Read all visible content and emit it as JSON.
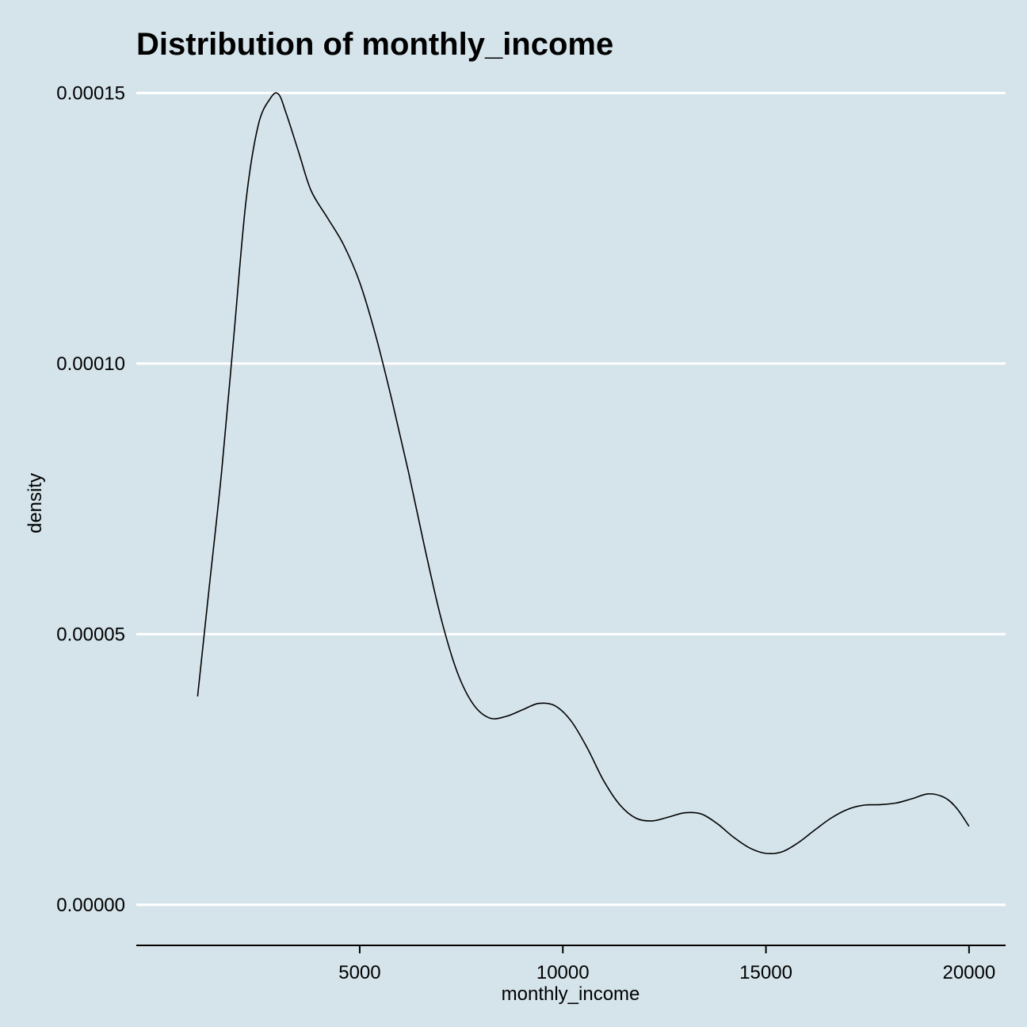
{
  "chart_data": {
    "type": "line",
    "title": "Distribution of monthly_income",
    "xlabel": "monthly_income",
    "ylabel": "density",
    "xlim": [
      -500,
      20900
    ],
    "ylim": [
      -7.5e-06,
      0.000154
    ],
    "x_ticks": [
      5000,
      10000,
      15000,
      20000
    ],
    "x_tick_labels": [
      "5000",
      "10000",
      "15000",
      "20000"
    ],
    "y_ticks": [
      0,
      5e-05,
      0.0001,
      0.00015
    ],
    "y_tick_labels": [
      "0.00000",
      "0.00005",
      "0.00010",
      "0.00015"
    ],
    "grid": "horizontal",
    "series": [
      {
        "name": "density",
        "x": [
          1009,
          1300,
          1600,
          1900,
          2200,
          2500,
          2800,
          3000,
          3200,
          3500,
          3800,
          4200,
          4600,
          5000,
          5400,
          5800,
          6200,
          6600,
          7000,
          7400,
          7800,
          8200,
          8600,
          9000,
          9400,
          9800,
          10200,
          10600,
          11000,
          11400,
          11800,
          12200,
          12600,
          13000,
          13400,
          13800,
          14200,
          14600,
          15000,
          15400,
          15800,
          16200,
          16600,
          17000,
          17400,
          17800,
          18200,
          18600,
          19000,
          19400,
          19700,
          19999
        ],
        "values": [
          3.85e-05,
          5.9e-05,
          8e-05,
          0.000105,
          0.00013,
          0.000144,
          0.000149,
          0.0001498,
          0.000146,
          0.000139,
          0.000132,
          0.000127,
          0.000122,
          0.000115,
          0.000105,
          9.3e-05,
          8e-05,
          6.6e-05,
          5.3e-05,
          4.3e-05,
          3.7e-05,
          3.45e-05,
          3.48e-05,
          3.6e-05,
          3.72e-05,
          3.68e-05,
          3.4e-05,
          2.9e-05,
          2.3e-05,
          1.85e-05,
          1.6e-05,
          1.55e-05,
          1.62e-05,
          1.7e-05,
          1.68e-05,
          1.5e-05,
          1.25e-05,
          1.05e-05,
          9.5e-06,
          9.8e-06,
          1.15e-05,
          1.38e-05,
          1.6e-05,
          1.76e-05,
          1.84e-05,
          1.85e-05,
          1.88e-05,
          1.96e-05,
          2.05e-05,
          1.98e-05,
          1.78e-05,
          1.45e-05
        ]
      }
    ]
  }
}
